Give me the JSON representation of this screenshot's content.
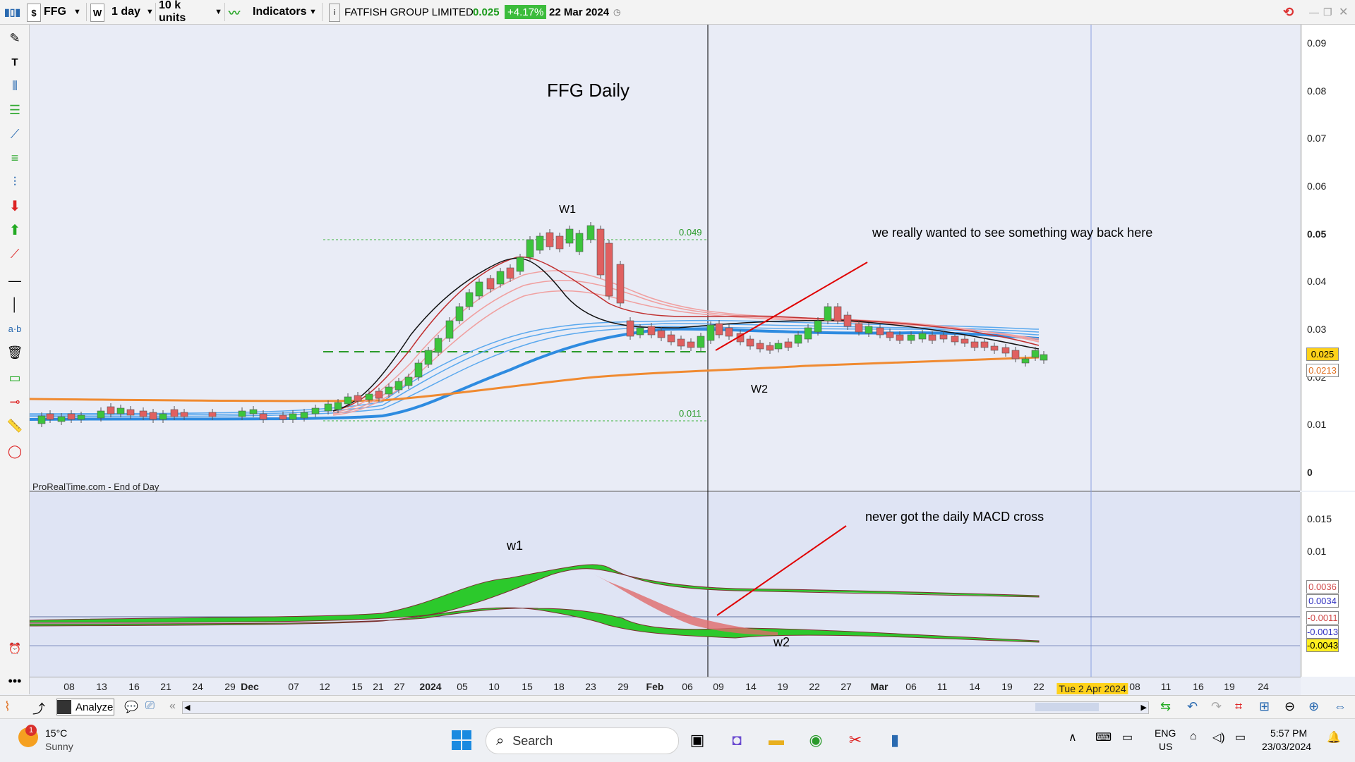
{
  "toolbar": {
    "symbol": "FFG",
    "period_icon": "W",
    "timeframe": "1 day",
    "units": "10 k units",
    "indicators_label": "Indicators",
    "instrument_name": "FATFISH GROUP LIMITED",
    "price": "0.025",
    "change": "+4.17%",
    "date": "22 Mar 2024"
  },
  "chart": {
    "title": "FFG Daily",
    "source_label": "ProRealTime.com - End of Day",
    "annotations": {
      "w1_upper": "W1",
      "w2_upper": "W2",
      "w1_lower": "w1",
      "w2_lower": "w2",
      "note_upper": "we really wanted to see something way back here",
      "note_lower": "never got the daily MACD cross",
      "fib_high": "0.049",
      "fib_low": "0.011"
    },
    "colors": {
      "up": "#3cc43c",
      "down": "#e06060",
      "orange_ma": "#f08a30",
      "blue_ma": "#2e8be0",
      "red_note": "#e00000"
    }
  },
  "price_axis": {
    "ticks": [
      "0.09",
      "0.08",
      "0.07",
      "0.06",
      "0.05",
      "0.04",
      "0.03",
      "0.02",
      "0.01",
      "0"
    ],
    "price_label": "0.025",
    "ma_label": "0.0213"
  },
  "indicator_axis": {
    "ticks": [
      "0.015",
      "0.01"
    ],
    "labels": [
      "0.0036",
      "0.0034",
      "-0.0011",
      "-0.0013",
      "-0.0043"
    ]
  },
  "date_axis": {
    "labels": [
      "08",
      "13",
      "16",
      "21",
      "24",
      "29",
      "Dec",
      "07",
      "12",
      "15",
      "21",
      "27",
      "2024",
      "05",
      "10",
      "15",
      "18",
      "23",
      "29",
      "Feb",
      "06",
      "09",
      "14",
      "19",
      "22",
      "27",
      "Mar",
      "06",
      "11",
      "14",
      "19",
      "22",
      "Tue 2 Apr 2024",
      "08",
      "11",
      "16",
      "19",
      "24"
    ]
  },
  "bottombar": {
    "analyze_label": "Analyze"
  },
  "taskbar": {
    "weather_temp": "15°C",
    "weather_desc": "Sunny",
    "weather_badge": "1",
    "search_placeholder": "Search",
    "lang": "ENG",
    "region": "US",
    "time": "5:57 PM",
    "date": "23/03/2024"
  }
}
